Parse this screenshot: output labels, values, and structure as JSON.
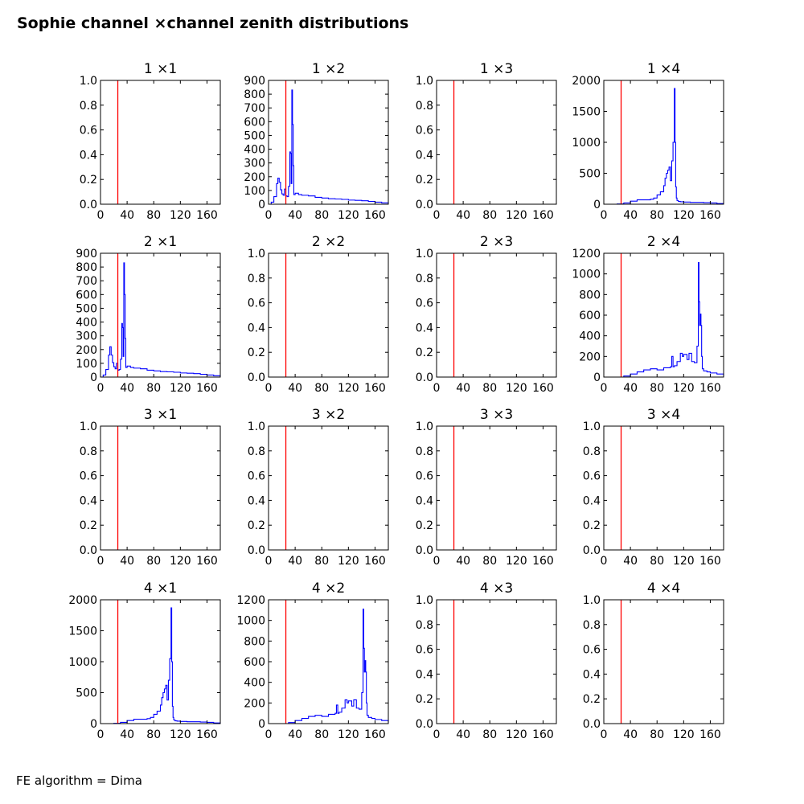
{
  "figure": {
    "title": "Sophie channel ×channel zenith distributions",
    "footer": "FE algorithm = Dima"
  },
  "colors": {
    "histogram": "#0000ff",
    "cut_line": "#ff0000",
    "axes": "#000000"
  },
  "chart_data": [
    {
      "type": "line",
      "title": "1 ×1",
      "xlim": [
        0,
        180
      ],
      "ylim": [
        0,
        1.0
      ],
      "xticks": [
        0,
        40,
        80,
        120,
        160
      ],
      "yticks": [
        0.0,
        0.2,
        0.4,
        0.6,
        0.8,
        1.0
      ],
      "ytick_labels": [
        "0.0",
        "0.2",
        "0.4",
        "0.6",
        "0.8",
        "1.0"
      ],
      "vline_x": 26,
      "x": [],
      "y": []
    },
    {
      "type": "line",
      "title": "1 ×2",
      "xlim": [
        0,
        180
      ],
      "ylim": [
        0,
        900
      ],
      "xticks": [
        0,
        40,
        80,
        120,
        160
      ],
      "yticks": [
        0,
        100,
        200,
        300,
        400,
        500,
        600,
        700,
        800,
        900
      ],
      "ytick_labels": [
        "0",
        "100",
        "200",
        "300",
        "400",
        "500",
        "600",
        "700",
        "800",
        "900"
      ],
      "vline_x": 26,
      "x": [
        0,
        4,
        8,
        12,
        14,
        16,
        18,
        20,
        22,
        24,
        26,
        28,
        30,
        32,
        33,
        34,
        35,
        36,
        37,
        38,
        40,
        45,
        50,
        60,
        70,
        80,
        90,
        100,
        110,
        120,
        130,
        140,
        150,
        160,
        170,
        180
      ],
      "y": [
        0,
        15,
        55,
        150,
        190,
        160,
        105,
        75,
        65,
        110,
        60,
        55,
        130,
        380,
        370,
        150,
        830,
        580,
        280,
        70,
        80,
        70,
        65,
        60,
        50,
        45,
        40,
        38,
        35,
        30,
        28,
        25,
        20,
        15,
        10,
        5
      ]
    },
    {
      "type": "line",
      "title": "1 ×3",
      "xlim": [
        0,
        180
      ],
      "ylim": [
        0,
        1.0
      ],
      "xticks": [
        0,
        40,
        80,
        120,
        160
      ],
      "yticks": [
        0.0,
        0.2,
        0.4,
        0.6,
        0.8,
        1.0
      ],
      "ytick_labels": [
        "0.0",
        "0.2",
        "0.4",
        "0.6",
        "0.8",
        "1.0"
      ],
      "vline_x": 26,
      "x": [],
      "y": []
    },
    {
      "type": "line",
      "title": "1 ×4",
      "xlim": [
        0,
        180
      ],
      "ylim": [
        0,
        2000
      ],
      "xticks": [
        0,
        40,
        80,
        120,
        160
      ],
      "yticks": [
        0,
        500,
        1000,
        1500,
        2000
      ],
      "ytick_labels": [
        "0",
        "500",
        "1000",
        "1500",
        "2000"
      ],
      "vline_x": 26,
      "x": [
        0,
        20,
        30,
        40,
        50,
        60,
        70,
        75,
        80,
        85,
        90,
        92,
        94,
        96,
        98,
        100,
        102,
        104,
        106,
        107,
        108,
        109,
        110,
        112,
        115,
        120,
        130,
        140,
        150,
        160,
        170,
        180
      ],
      "y": [
        0,
        5,
        20,
        50,
        70,
        70,
        80,
        100,
        150,
        200,
        300,
        420,
        500,
        550,
        600,
        380,
        700,
        1000,
        1870,
        1000,
        280,
        100,
        60,
        45,
        40,
        35,
        30,
        30,
        25,
        20,
        10,
        5
      ]
    },
    {
      "type": "line",
      "title": "2 ×1",
      "xlim": [
        0,
        180
      ],
      "ylim": [
        0,
        900
      ],
      "xticks": [
        0,
        40,
        80,
        120,
        160
      ],
      "yticks": [
        0,
        100,
        200,
        300,
        400,
        500,
        600,
        700,
        800,
        900
      ],
      "ytick_labels": [
        "0",
        "100",
        "200",
        "300",
        "400",
        "500",
        "600",
        "700",
        "800",
        "900"
      ],
      "vline_x": 26,
      "x": [
        0,
        4,
        8,
        12,
        14,
        16,
        18,
        20,
        22,
        24,
        26,
        28,
        30,
        32,
        33,
        34,
        35,
        36,
        37,
        38,
        40,
        45,
        50,
        60,
        70,
        80,
        90,
        100,
        110,
        120,
        130,
        140,
        150,
        160,
        170,
        180
      ],
      "y": [
        0,
        15,
        55,
        160,
        220,
        160,
        105,
        75,
        60,
        100,
        50,
        55,
        130,
        390,
        360,
        150,
        830,
        600,
        280,
        70,
        80,
        70,
        65,
        60,
        50,
        45,
        40,
        38,
        35,
        30,
        28,
        25,
        20,
        15,
        10,
        5
      ]
    },
    {
      "type": "line",
      "title": "2 ×2",
      "xlim": [
        0,
        180
      ],
      "ylim": [
        0,
        1.0
      ],
      "xticks": [
        0,
        40,
        80,
        120,
        160
      ],
      "yticks": [
        0.0,
        0.2,
        0.4,
        0.6,
        0.8,
        1.0
      ],
      "ytick_labels": [
        "0.0",
        "0.2",
        "0.4",
        "0.6",
        "0.8",
        "1.0"
      ],
      "vline_x": 26,
      "x": [],
      "y": []
    },
    {
      "type": "line",
      "title": "2 ×3",
      "xlim": [
        0,
        180
      ],
      "ylim": [
        0,
        1.0
      ],
      "xticks": [
        0,
        40,
        80,
        120,
        160
      ],
      "yticks": [
        0.0,
        0.2,
        0.4,
        0.6,
        0.8,
        1.0
      ],
      "ytick_labels": [
        "0.0",
        "0.2",
        "0.4",
        "0.6",
        "0.8",
        "1.0"
      ],
      "vline_x": 26,
      "x": [
        0,
        180
      ],
      "y": [
        0,
        0
      ]
    },
    {
      "type": "line",
      "title": "2 ×4",
      "xlim": [
        0,
        180
      ],
      "ylim": [
        0,
        1200
      ],
      "xticks": [
        0,
        40,
        80,
        120,
        160
      ],
      "yticks": [
        0,
        200,
        400,
        600,
        800,
        1000,
        1200
      ],
      "ytick_labels": [
        "0",
        "200",
        "400",
        "600",
        "800",
        "1000",
        "1200"
      ],
      "vline_x": 26,
      "x": [
        0,
        30,
        40,
        50,
        60,
        70,
        80,
        90,
        100,
        102,
        104,
        106,
        110,
        115,
        118,
        120,
        125,
        128,
        132,
        136,
        140,
        142,
        143,
        144,
        145,
        146,
        147,
        148,
        150,
        155,
        160,
        170,
        180
      ],
      "y": [
        0,
        10,
        30,
        50,
        70,
        80,
        70,
        90,
        100,
        200,
        100,
        110,
        150,
        230,
        200,
        220,
        170,
        230,
        150,
        140,
        300,
        1110,
        730,
        500,
        610,
        500,
        200,
        80,
        60,
        50,
        40,
        30,
        10
      ]
    },
    {
      "type": "line",
      "title": "3 ×1",
      "xlim": [
        0,
        180
      ],
      "ylim": [
        0,
        1.0
      ],
      "xticks": [
        0,
        40,
        80,
        120,
        160
      ],
      "yticks": [
        0.0,
        0.2,
        0.4,
        0.6,
        0.8,
        1.0
      ],
      "ytick_labels": [
        "0.0",
        "0.2",
        "0.4",
        "0.6",
        "0.8",
        "1.0"
      ],
      "vline_x": 26,
      "x": [],
      "y": []
    },
    {
      "type": "line",
      "title": "3 ×2",
      "xlim": [
        0,
        180
      ],
      "ylim": [
        0,
        1.0
      ],
      "xticks": [
        0,
        40,
        80,
        120,
        160
      ],
      "yticks": [
        0.0,
        0.2,
        0.4,
        0.6,
        0.8,
        1.0
      ],
      "ytick_labels": [
        "0.0",
        "0.2",
        "0.4",
        "0.6",
        "0.8",
        "1.0"
      ],
      "vline_x": 26,
      "x": [],
      "y": []
    },
    {
      "type": "line",
      "title": "3 ×3",
      "xlim": [
        0,
        180
      ],
      "ylim": [
        0,
        1.0
      ],
      "xticks": [
        0,
        40,
        80,
        120,
        160
      ],
      "yticks": [
        0.0,
        0.2,
        0.4,
        0.6,
        0.8,
        1.0
      ],
      "ytick_labels": [
        "0.0",
        "0.2",
        "0.4",
        "0.6",
        "0.8",
        "1.0"
      ],
      "vline_x": 26,
      "x": [],
      "y": []
    },
    {
      "type": "line",
      "title": "3 ×4",
      "xlim": [
        0,
        180
      ],
      "ylim": [
        0,
        1.0
      ],
      "xticks": [
        0,
        40,
        80,
        120,
        160
      ],
      "yticks": [
        0.0,
        0.2,
        0.4,
        0.6,
        0.8,
        1.0
      ],
      "ytick_labels": [
        "0.0",
        "0.2",
        "0.4",
        "0.6",
        "0.8",
        "1.0"
      ],
      "vline_x": 26,
      "x": [],
      "y": []
    },
    {
      "type": "line",
      "title": "4 ×1",
      "xlim": [
        0,
        180
      ],
      "ylim": [
        0,
        2000
      ],
      "xticks": [
        0,
        40,
        80,
        120,
        160
      ],
      "yticks": [
        0,
        500,
        1000,
        1500,
        2000
      ],
      "ytick_labels": [
        "0",
        "500",
        "1000",
        "1500",
        "2000"
      ],
      "vline_x": 26,
      "x": [
        0,
        20,
        30,
        40,
        50,
        60,
        70,
        75,
        80,
        85,
        90,
        92,
        94,
        96,
        98,
        100,
        102,
        104,
        106,
        107,
        108,
        109,
        110,
        112,
        115,
        120,
        130,
        140,
        150,
        160,
        170,
        180
      ],
      "y": [
        0,
        5,
        20,
        50,
        70,
        70,
        80,
        100,
        150,
        200,
        300,
        420,
        500,
        560,
        620,
        380,
        700,
        1050,
        1870,
        1000,
        280,
        100,
        60,
        45,
        40,
        35,
        30,
        30,
        25,
        20,
        10,
        5
      ]
    },
    {
      "type": "line",
      "title": "4 ×2",
      "xlim": [
        0,
        180
      ],
      "ylim": [
        0,
        1200
      ],
      "xticks": [
        0,
        40,
        80,
        120,
        160
      ],
      "yticks": [
        0,
        200,
        400,
        600,
        800,
        1000,
        1200
      ],
      "ytick_labels": [
        "0",
        "200",
        "400",
        "600",
        "800",
        "1000",
        "1200"
      ],
      "vline_x": 26,
      "x": [
        0,
        30,
        40,
        50,
        60,
        70,
        80,
        90,
        100,
        102,
        104,
        106,
        110,
        115,
        118,
        120,
        125,
        128,
        132,
        136,
        140,
        142,
        143,
        144,
        145,
        146,
        147,
        148,
        150,
        155,
        160,
        170,
        180
      ],
      "y": [
        0,
        10,
        30,
        50,
        70,
        80,
        70,
        90,
        100,
        180,
        100,
        110,
        150,
        230,
        200,
        220,
        170,
        230,
        150,
        140,
        300,
        1110,
        730,
        500,
        610,
        500,
        200,
        80,
        60,
        50,
        40,
        30,
        10
      ]
    },
    {
      "type": "line",
      "title": "4 ×3",
      "xlim": [
        0,
        180
      ],
      "ylim": [
        0,
        1.0
      ],
      "xticks": [
        0,
        40,
        80,
        120,
        160
      ],
      "yticks": [
        0.0,
        0.2,
        0.4,
        0.6,
        0.8,
        1.0
      ],
      "ytick_labels": [
        "0.0",
        "0.2",
        "0.4",
        "0.6",
        "0.8",
        "1.0"
      ],
      "vline_x": 26,
      "x": [],
      "y": []
    },
    {
      "type": "line",
      "title": "4 ×4",
      "xlim": [
        0,
        180
      ],
      "ylim": [
        0,
        1.0
      ],
      "xticks": [
        0,
        40,
        80,
        120,
        160
      ],
      "yticks": [
        0.0,
        0.2,
        0.4,
        0.6,
        0.8,
        1.0
      ],
      "ytick_labels": [
        "0.0",
        "0.2",
        "0.4",
        "0.6",
        "0.8",
        "1.0"
      ],
      "vline_x": 26,
      "x": [],
      "y": []
    }
  ]
}
